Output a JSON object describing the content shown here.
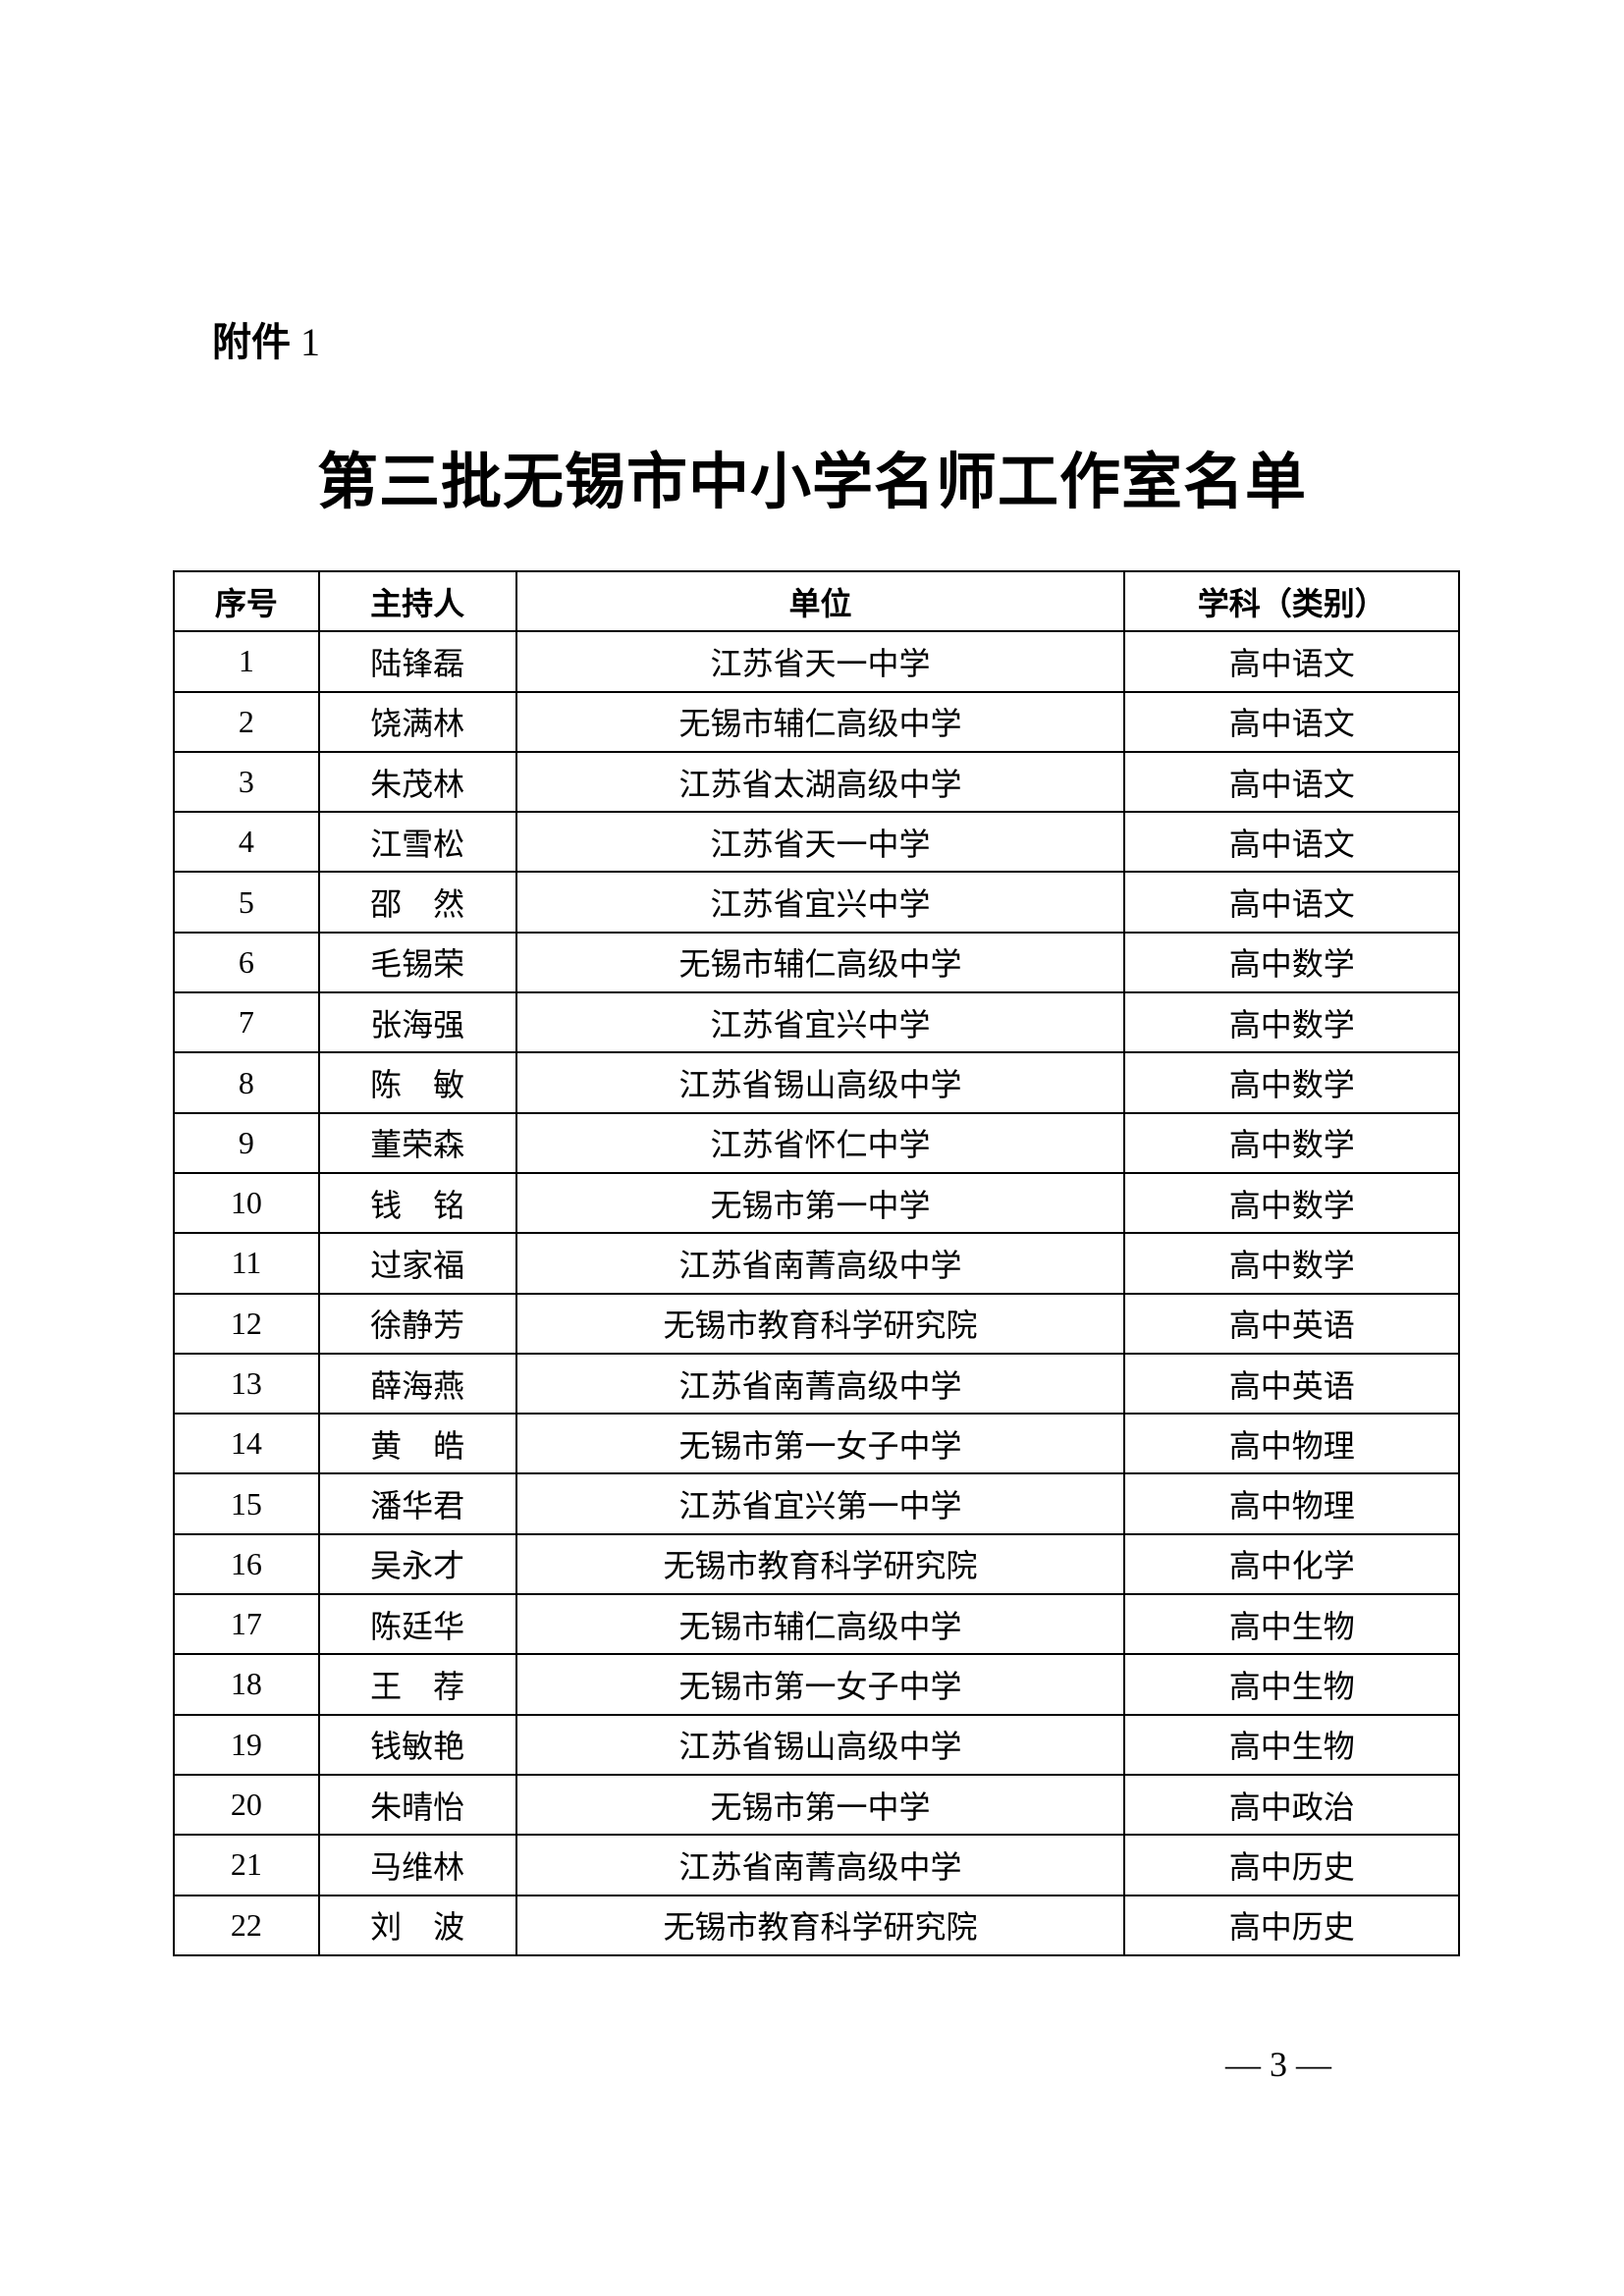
{
  "attachment": {
    "label": "附件",
    "number": "1"
  },
  "title": "第三批无锡市中小学名师工作室名单",
  "table": {
    "headers": [
      "序号",
      "主持人",
      "单位",
      "学科（类别）"
    ],
    "rows": [
      [
        "1",
        "陆锋磊",
        "江苏省天一中学",
        "高中语文"
      ],
      [
        "2",
        "饶满林",
        "无锡市辅仁高级中学",
        "高中语文"
      ],
      [
        "3",
        "朱茂林",
        "江苏省太湖高级中学",
        "高中语文"
      ],
      [
        "4",
        "江雪松",
        "江苏省天一中学",
        "高中语文"
      ],
      [
        "5",
        "邵　然",
        "江苏省宜兴中学",
        "高中语文"
      ],
      [
        "6",
        "毛锡荣",
        "无锡市辅仁高级中学",
        "高中数学"
      ],
      [
        "7",
        "张海强",
        "江苏省宜兴中学",
        "高中数学"
      ],
      [
        "8",
        "陈　敏",
        "江苏省锡山高级中学",
        "高中数学"
      ],
      [
        "9",
        "董荣森",
        "江苏省怀仁中学",
        "高中数学"
      ],
      [
        "10",
        "钱　铭",
        "无锡市第一中学",
        "高中数学"
      ],
      [
        "11",
        "过家福",
        "江苏省南菁高级中学",
        "高中数学"
      ],
      [
        "12",
        "徐静芳",
        "无锡市教育科学研究院",
        "高中英语"
      ],
      [
        "13",
        "薛海燕",
        "江苏省南菁高级中学",
        "高中英语"
      ],
      [
        "14",
        "黄　皓",
        "无锡市第一女子中学",
        "高中物理"
      ],
      [
        "15",
        "潘华君",
        "江苏省宜兴第一中学",
        "高中物理"
      ],
      [
        "16",
        "吴永才",
        "无锡市教育科学研究院",
        "高中化学"
      ],
      [
        "17",
        "陈廷华",
        "无锡市辅仁高级中学",
        "高中生物"
      ],
      [
        "18",
        "王　荐",
        "无锡市第一女子中学",
        "高中生物"
      ],
      [
        "19",
        "钱敏艳",
        "江苏省锡山高级中学",
        "高中生物"
      ],
      [
        "20",
        "朱晴怡",
        "无锡市第一中学",
        "高中政治"
      ],
      [
        "21",
        "马维林",
        "江苏省南菁高级中学",
        "高中历史"
      ],
      [
        "22",
        "刘　波",
        "无锡市教育科学研究院",
        "高中历史"
      ]
    ]
  },
  "page_number": "— 3 —"
}
